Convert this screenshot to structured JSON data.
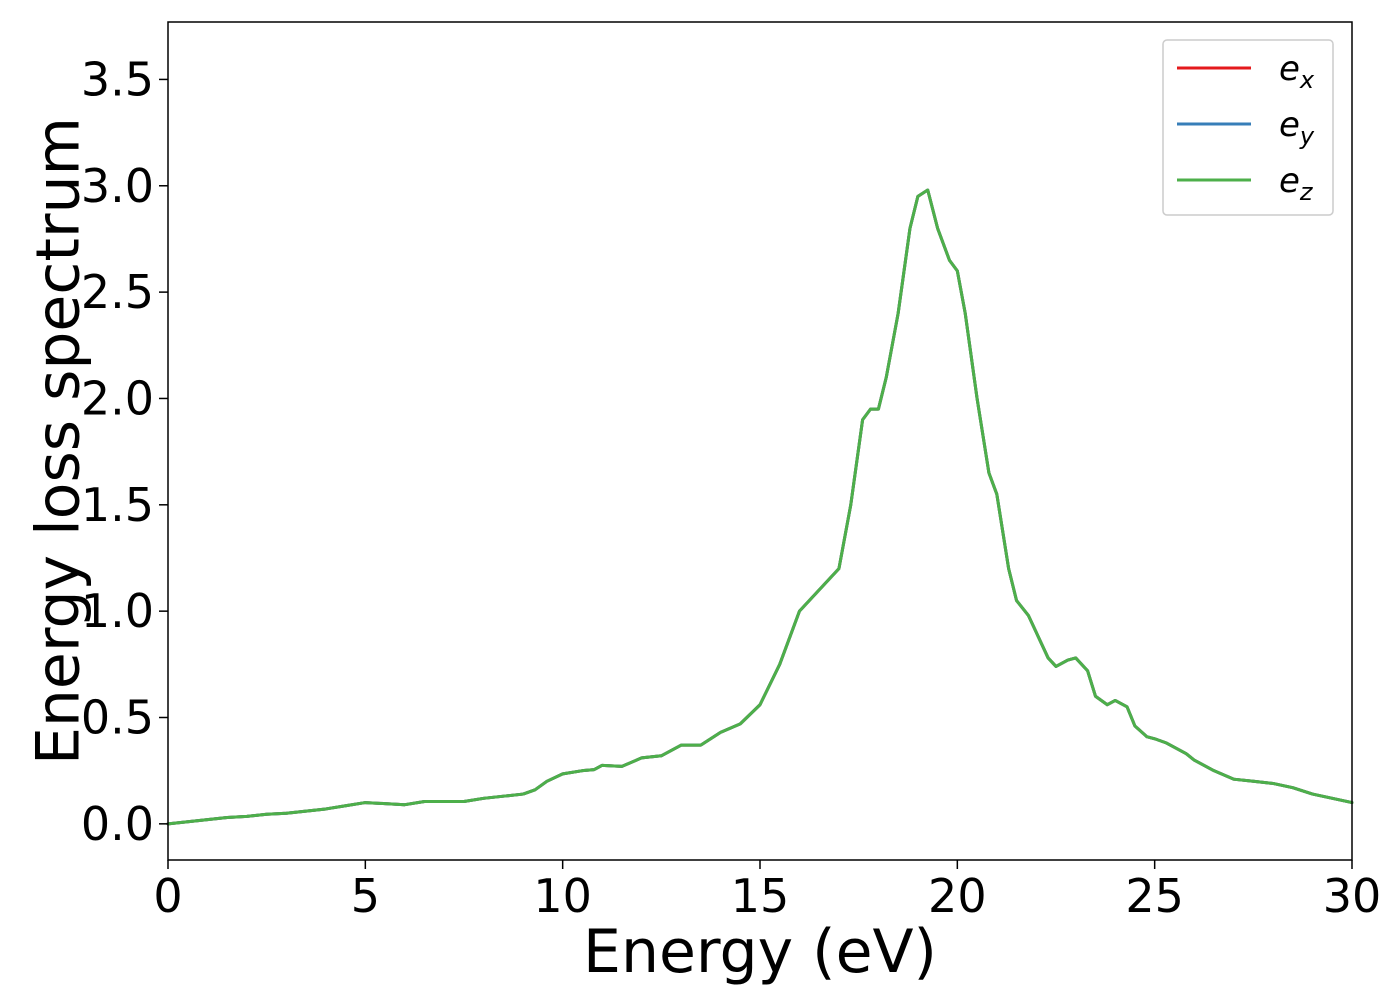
{
  "chart_data": {
    "type": "line",
    "title": "",
    "xlabel": "Energy (eV)",
    "ylabel": "Energy loss spectrum",
    "xlim": [
      0,
      30
    ],
    "ylim": [
      -0.17,
      3.77
    ],
    "xticks": [
      0,
      5,
      10,
      15,
      20,
      25,
      30
    ],
    "yticks": [
      0.0,
      0.5,
      1.0,
      1.5,
      2.0,
      2.5,
      3.0,
      3.5
    ],
    "xtick_labels": [
      "0",
      "5",
      "10",
      "15",
      "20",
      "25",
      "30"
    ],
    "ytick_labels": [
      "0.0",
      "0.5",
      "1.0",
      "1.5",
      "2.0",
      "2.5",
      "3.0",
      "3.5"
    ],
    "grid": false,
    "legend": {
      "position": "top-right",
      "entries": [
        {
          "base": "e",
          "sub": "x",
          "color": "#e41a1c"
        },
        {
          "base": "e",
          "sub": "y",
          "color": "#377eb8"
        },
        {
          "base": "e",
          "sub": "z",
          "color": "#4daf4a"
        }
      ]
    },
    "x": [
      0,
      0.5,
      1,
      1.5,
      2,
      2.5,
      3,
      3.5,
      4,
      4.5,
      5,
      5.5,
      6,
      6.5,
      7,
      7.5,
      8,
      8.5,
      9,
      9.3,
      9.6,
      10,
      10.5,
      10.8,
      11,
      11.5,
      12,
      12.5,
      13,
      13.5,
      14,
      14.5,
      15,
      15.5,
      16,
      16.5,
      17,
      17.3,
      17.6,
      17.8,
      18,
      18.2,
      18.5,
      18.8,
      19,
      19.25,
      19.5,
      19.8,
      20,
      20.2,
      20.5,
      20.8,
      21,
      21.3,
      21.5,
      21.8,
      22,
      22.3,
      22.5,
      22.8,
      23,
      23.3,
      23.5,
      23.8,
      24,
      24.3,
      24.5,
      24.8,
      25,
      25.3,
      25.5,
      25.8,
      26,
      26.5,
      27,
      27.5,
      28,
      28.5,
      29,
      29.5,
      30
    ],
    "series": [
      {
        "name": "e_x",
        "color": "#e41a1c",
        "values": [
          0.0,
          0.01,
          0.02,
          0.03,
          0.035,
          0.045,
          0.05,
          0.06,
          0.07,
          0.085,
          0.1,
          0.095,
          0.09,
          0.105,
          0.105,
          0.105,
          0.12,
          0.13,
          0.14,
          0.16,
          0.2,
          0.235,
          0.25,
          0.255,
          0.275,
          0.27,
          0.31,
          0.32,
          0.37,
          0.37,
          0.43,
          0.47,
          0.56,
          0.75,
          1.0,
          1.1,
          1.2,
          1.5,
          1.9,
          1.95,
          1.95,
          2.1,
          2.4,
          2.8,
          2.95,
          2.98,
          2.8,
          2.65,
          2.6,
          2.4,
          2.0,
          1.65,
          1.55,
          1.2,
          1.05,
          0.98,
          0.9,
          0.78,
          0.74,
          0.77,
          0.78,
          0.72,
          0.6,
          0.56,
          0.58,
          0.55,
          0.46,
          0.41,
          0.4,
          0.38,
          0.36,
          0.33,
          0.3,
          0.25,
          0.21,
          0.2,
          0.19,
          0.17,
          0.14,
          0.12,
          0.1
        ]
      },
      {
        "name": "e_y",
        "color": "#377eb8",
        "values": [
          0.0,
          0.01,
          0.02,
          0.03,
          0.035,
          0.045,
          0.05,
          0.06,
          0.07,
          0.085,
          0.1,
          0.095,
          0.09,
          0.105,
          0.105,
          0.105,
          0.12,
          0.13,
          0.14,
          0.16,
          0.2,
          0.235,
          0.25,
          0.255,
          0.275,
          0.27,
          0.31,
          0.32,
          0.37,
          0.37,
          0.43,
          0.47,
          0.56,
          0.75,
          1.0,
          1.1,
          1.2,
          1.5,
          1.9,
          1.95,
          1.95,
          2.1,
          2.4,
          2.8,
          2.95,
          2.98,
          2.8,
          2.65,
          2.6,
          2.4,
          2.0,
          1.65,
          1.55,
          1.2,
          1.05,
          0.98,
          0.9,
          0.78,
          0.74,
          0.77,
          0.78,
          0.72,
          0.6,
          0.56,
          0.58,
          0.55,
          0.46,
          0.41,
          0.4,
          0.38,
          0.36,
          0.33,
          0.3,
          0.25,
          0.21,
          0.2,
          0.19,
          0.17,
          0.14,
          0.12,
          0.1
        ]
      },
      {
        "name": "e_z",
        "color": "#4daf4a",
        "values": [
          0.0,
          0.01,
          0.02,
          0.03,
          0.035,
          0.045,
          0.05,
          0.06,
          0.07,
          0.085,
          0.1,
          0.095,
          0.09,
          0.105,
          0.105,
          0.105,
          0.12,
          0.13,
          0.14,
          0.16,
          0.2,
          0.235,
          0.25,
          0.255,
          0.275,
          0.27,
          0.31,
          0.32,
          0.37,
          0.37,
          0.43,
          0.47,
          0.56,
          0.75,
          1.0,
          1.1,
          1.2,
          1.5,
          1.9,
          1.95,
          1.95,
          2.1,
          2.4,
          2.8,
          2.95,
          2.98,
          2.8,
          2.65,
          2.6,
          2.4,
          2.0,
          1.65,
          1.55,
          1.2,
          1.05,
          0.98,
          0.9,
          0.78,
          0.74,
          0.77,
          0.78,
          0.72,
          0.6,
          0.56,
          0.58,
          0.55,
          0.46,
          0.41,
          0.4,
          0.38,
          0.36,
          0.33,
          0.3,
          0.25,
          0.21,
          0.2,
          0.19,
          0.17,
          0.14,
          0.12,
          0.1
        ]
      }
    ]
  }
}
